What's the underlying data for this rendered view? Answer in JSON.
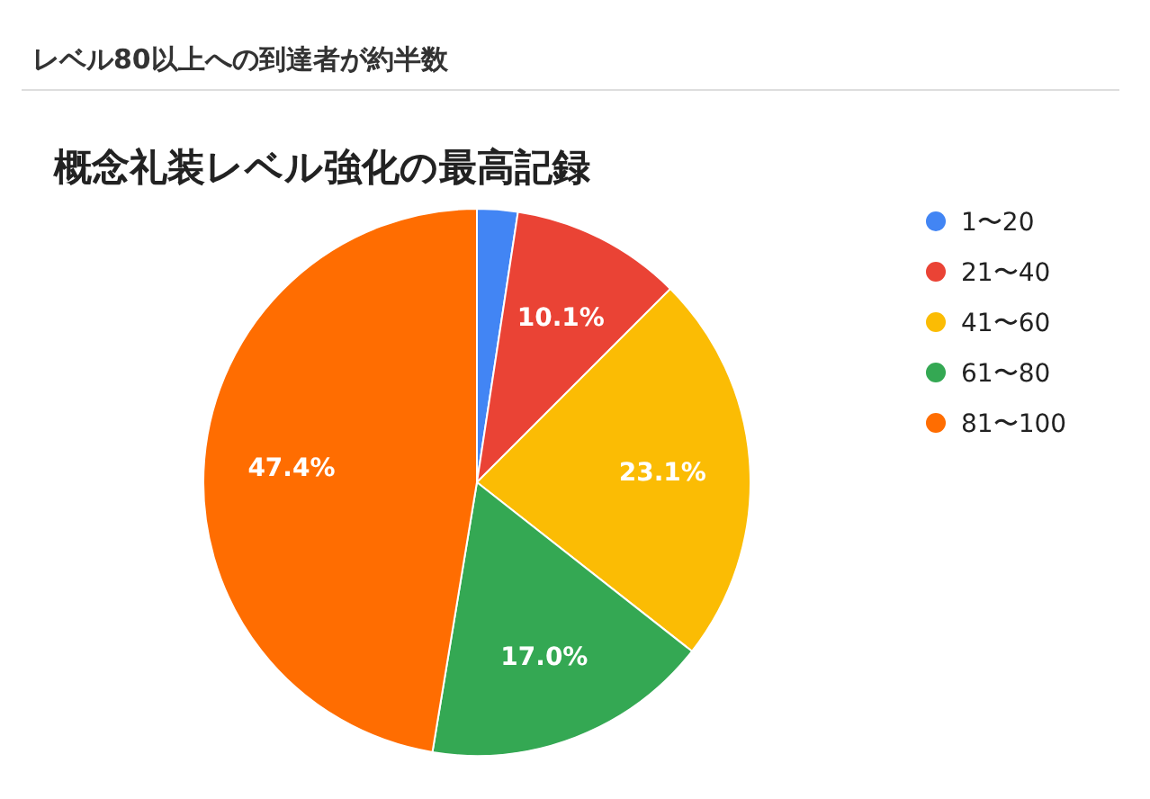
{
  "chart_data": {
    "type": "pie",
    "title": "概念礼装レベル強化の最高記録",
    "annotations": [
      "レベル80以上への到達者が約半数"
    ],
    "categories": [
      "1〜20",
      "21〜40",
      "41〜60",
      "61〜80",
      "81〜100"
    ],
    "values": [
      2.4,
      10.1,
      23.1,
      17.0,
      47.4
    ],
    "value_labels": [
      null,
      "10.1%",
      "23.1%",
      "17.0%",
      "47.4%"
    ],
    "colors": [
      "#4285f4",
      "#ea4335",
      "#fbbc04",
      "#34a853",
      "#ff6d01"
    ],
    "legend": "right"
  }
}
